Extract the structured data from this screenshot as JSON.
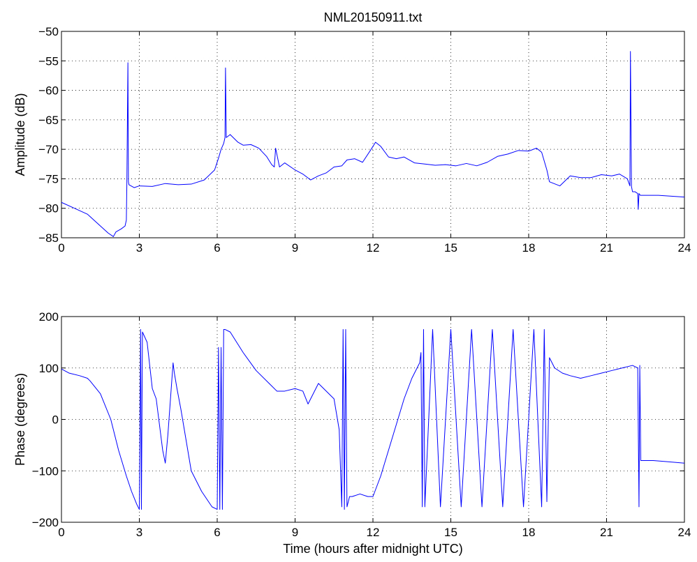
{
  "chart_data": [
    {
      "type": "line",
      "title": "NML20150911.txt",
      "xlabel": "",
      "ylabel": "Amplitude (dB)",
      "xlim": [
        0,
        24
      ],
      "ylim": [
        -85,
        -50
      ],
      "xticks": [
        0,
        3,
        6,
        9,
        12,
        15,
        18,
        21,
        24
      ],
      "yticks": [
        -85,
        -80,
        -75,
        -70,
        -65,
        -60,
        -55,
        -50
      ],
      "xtick_labels": [
        "0",
        "3",
        "6",
        "9",
        "12",
        "15",
        "18",
        "21",
        "24"
      ],
      "ytick_labels": [
        "−85",
        "−80",
        "−75",
        "−70",
        "−65",
        "−60",
        "−55",
        "−50"
      ],
      "grid": true,
      "color": "#0000ff",
      "series": [
        {
          "x": [
            0,
            0.5,
            1.0,
            1.5,
            1.8,
            2.0,
            2.1,
            2.3,
            2.45,
            2.5,
            2.52,
            2.56,
            2.58,
            2.6,
            2.8,
            3.0,
            3.5,
            4.0,
            4.5,
            5.0,
            5.5,
            5.9,
            6.05,
            6.15,
            6.25,
            6.3,
            6.32,
            6.35,
            6.5,
            6.8,
            7.0,
            7.3,
            7.6,
            7.9,
            8.1,
            8.2,
            8.25,
            8.4,
            8.6,
            9.0,
            9.3,
            9.6,
            9.9,
            10.2,
            10.5,
            10.8,
            11.0,
            11.3,
            11.6,
            11.9,
            12.1,
            12.3,
            12.6,
            12.9,
            13.2,
            13.6,
            14.0,
            14.4,
            14.8,
            15.2,
            15.6,
            16.0,
            16.4,
            16.8,
            17.2,
            17.6,
            18.0,
            18.3,
            18.5,
            18.7,
            18.8,
            19.2,
            19.6,
            20.0,
            20.4,
            20.8,
            21.2,
            21.5,
            21.8,
            21.9,
            21.92,
            21.96,
            22.0,
            22.1,
            22.2,
            22.22,
            22.25,
            22.3,
            23.0,
            24.0
          ],
          "y": [
            -79,
            -80,
            -81,
            -83,
            -84.2,
            -84.8,
            -84,
            -83.5,
            -83,
            -82,
            -75.5,
            -55.3,
            -75.5,
            -76,
            -76.5,
            -76.2,
            -76.3,
            -75.8,
            -76,
            -75.9,
            -75.2,
            -73.5,
            -71.5,
            -70,
            -69,
            -68,
            -56.2,
            -68,
            -67.5,
            -68.8,
            -69.3,
            -69.2,
            -69.8,
            -71.2,
            -72.6,
            -73,
            -69.8,
            -73,
            -72.3,
            -73.5,
            -74.2,
            -75.2,
            -74.5,
            -74,
            -73,
            -72.8,
            -71.8,
            -71.6,
            -72.2,
            -70.2,
            -68.8,
            -69.5,
            -71.3,
            -71.6,
            -71.3,
            -72.3,
            -72.5,
            -72.7,
            -72.6,
            -72.8,
            -72.4,
            -72.8,
            -72.2,
            -71.2,
            -70.8,
            -70.2,
            -70.3,
            -69.8,
            -70.5,
            -73.5,
            -75.5,
            -76.2,
            -74.5,
            -74.8,
            -74.8,
            -74.3,
            -74.5,
            -74.2,
            -75,
            -76.2,
            -53.4,
            -76.3,
            -77.2,
            -77.2,
            -77.5,
            -80.2,
            -77.5,
            -77.8,
            -77.8,
            -78.1
          ]
        }
      ]
    },
    {
      "type": "line",
      "title": "",
      "xlabel": "Time (hours after midnight UTC)",
      "ylabel": "Phase (degrees)",
      "xlim": [
        0,
        24
      ],
      "ylim": [
        -200,
        200
      ],
      "xticks": [
        0,
        3,
        6,
        9,
        12,
        15,
        18,
        21,
        24
      ],
      "yticks": [
        -200,
        -100,
        0,
        100,
        200
      ],
      "xtick_labels": [
        "0",
        "3",
        "6",
        "9",
        "12",
        "15",
        "18",
        "21",
        "24"
      ],
      "ytick_labels": [
        "−200",
        "−100",
        "0",
        "100",
        "200"
      ],
      "grid": true,
      "color": "#0000ff",
      "series": [
        {
          "x": [
            0,
            0.3,
            0.7,
            1.0,
            1.1,
            1.5,
            1.9,
            2.2,
            2.5,
            2.7,
            2.9,
            3.0,
            3.05,
            3.08,
            3.12,
            3.3,
            3.5,
            3.65,
            3.8,
            3.9,
            4.0,
            4.1,
            4.2,
            4.3,
            4.35,
            4.45,
            4.6,
            4.8,
            5.0,
            5.4,
            5.8,
            6.0,
            6.05,
            6.1,
            6.15,
            6.2,
            6.25,
            6.3,
            6.5,
            7.0,
            7.5,
            8.0,
            8.3,
            8.6,
            9.0,
            9.3,
            9.5,
            9.7,
            9.9,
            10.1,
            10.3,
            10.5,
            10.7,
            10.8,
            10.85,
            10.9,
            10.95,
            11.0,
            11.05,
            11.1,
            11.2,
            11.5,
            11.8,
            12.0,
            12.3,
            12.6,
            12.9,
            13.2,
            13.5,
            13.8,
            13.85,
            13.9,
            13.95,
            14.0,
            14.3,
            14.6,
            15.0,
            15.4,
            15.8,
            16.2,
            16.6,
            17.0,
            17.4,
            17.8,
            18.2,
            18.5,
            18.6,
            18.7,
            18.8,
            19.0,
            19.3,
            19.6,
            20.0,
            20.4,
            20.8,
            21.2,
            21.6,
            22.0,
            22.2,
            22.25,
            22.28,
            22.32,
            22.4,
            22.8,
            23.3,
            24.0
          ],
          "y": [
            98,
            90,
            85,
            80,
            75,
            50,
            0,
            -60,
            -110,
            -140,
            -165,
            -175,
            175,
            -175,
            170,
            150,
            60,
            40,
            -20,
            -60,
            -85,
            -30,
            40,
            110,
            90,
            60,
            20,
            -40,
            -100,
            -140,
            -170,
            -175,
            140,
            -175,
            140,
            -175,
            175,
            175,
            170,
            130,
            95,
            70,
            55,
            55,
            60,
            55,
            30,
            50,
            70,
            60,
            50,
            40,
            -20,
            -170,
            175,
            -175,
            175,
            -170,
            -160,
            -150,
            -150,
            -145,
            -150,
            -150,
            -110,
            -60,
            -10,
            40,
            80,
            110,
            130,
            -170,
            175,
            -170,
            175,
            -170,
            175,
            -170,
            175,
            -170,
            175,
            -170,
            175,
            -170,
            175,
            -170,
            175,
            -160,
            120,
            100,
            90,
            85,
            80,
            85,
            90,
            95,
            100,
            105,
            100,
            -170,
            105,
            -80,
            -80,
            -80,
            -82,
            -85
          ]
        }
      ]
    }
  ]
}
